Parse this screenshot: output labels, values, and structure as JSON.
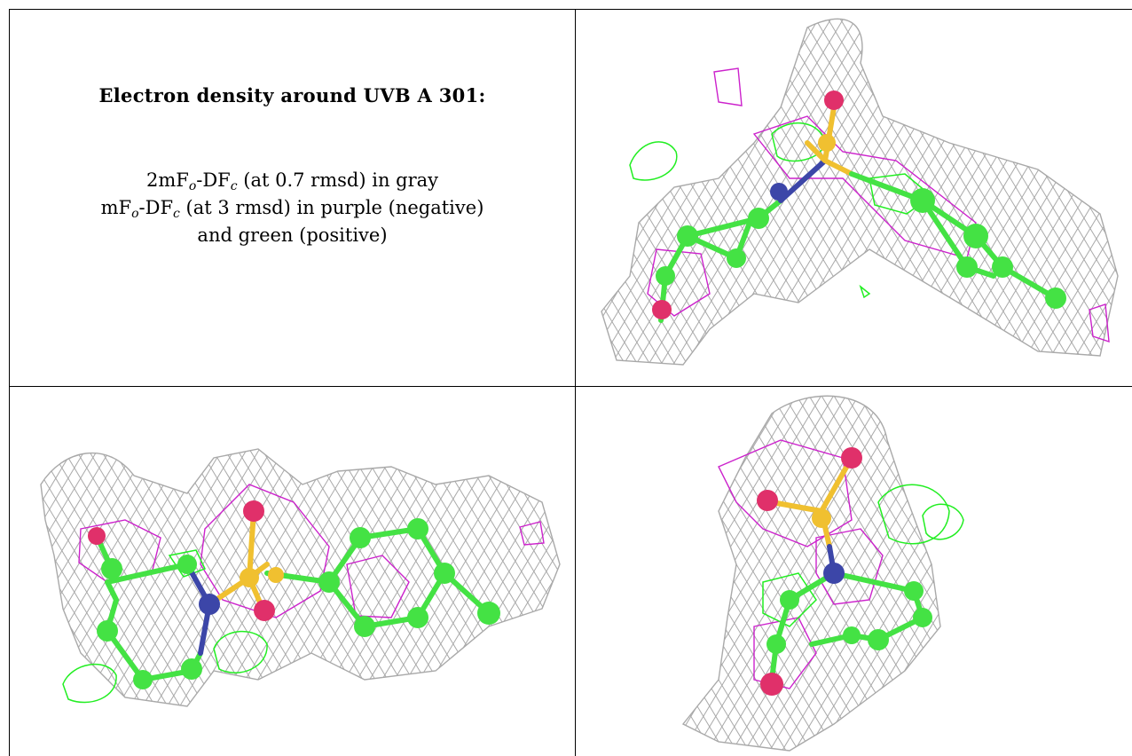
{
  "caption": {
    "title": "Electron density around UVB A 301:",
    "line1": {
      "pre": "2mF",
      "sub1": "o",
      "mid": "-DF",
      "sub2": "c",
      "post": " (at 0.7 rmsd) in gray"
    },
    "line2": {
      "pre": "mF",
      "sub1": "o",
      "mid": "-DF",
      "sub2": "c",
      "post": " (at 3 rmsd) in purple (negative)"
    },
    "line3": "and green (positive)"
  },
  "colors": {
    "mesh_2fofc": "#a9a9a9",
    "mesh_negative": "#cc22cc",
    "mesh_positive": "#22ee22",
    "carbon": "#44e244",
    "nitrogen": "#3c46a8",
    "oxygen": "#e0306a",
    "sulfur": "#f0c030",
    "rule": "#000000"
  },
  "panels": [
    {
      "view": "top-right",
      "content": "molecular-density-render"
    },
    {
      "view": "bottom-left",
      "content": "molecular-density-render"
    },
    {
      "view": "bottom-right",
      "content": "molecular-density-render"
    }
  ]
}
